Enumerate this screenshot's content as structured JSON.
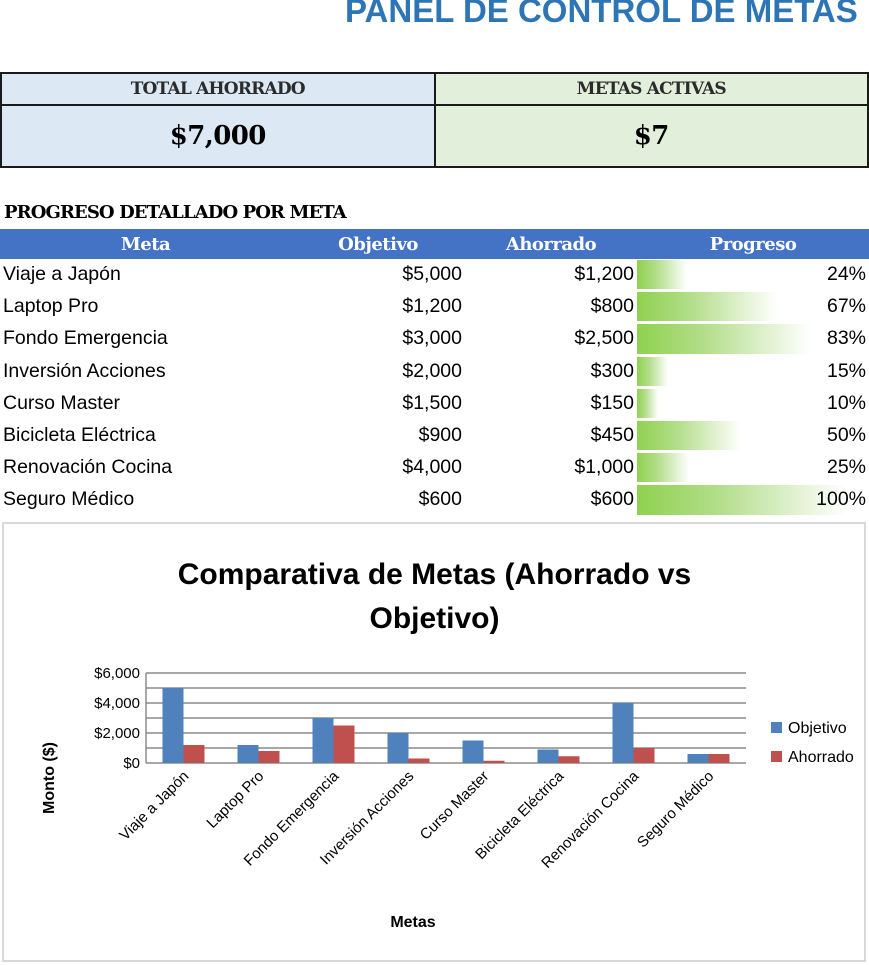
{
  "header": {
    "title": "PANEL DE CONTROL DE METAS"
  },
  "kpis": {
    "total_saved": {
      "label": "TOTAL AHORRADO",
      "value": "$7,000",
      "color": "#dde8f5"
    },
    "active_goals": {
      "label": "METAS ACTIVAS",
      "value": "$7",
      "color": "#e2efda"
    }
  },
  "progress_section": {
    "title": "PROGRESO DETALLADO POR META",
    "header_color": "#4472c4",
    "bar_color": "#8fd14f",
    "columns": [
      "Meta",
      "Objetivo",
      "Ahorrado",
      "Progreso"
    ],
    "rows": [
      {
        "meta": "Viaje a Japón",
        "objetivo": "$5,000",
        "ahorrado": "$1,200",
        "progreso": "24%",
        "pct": 24
      },
      {
        "meta": "Laptop Pro",
        "objetivo": "$1,200",
        "ahorrado": "$800",
        "progreso": "67%",
        "pct": 67
      },
      {
        "meta": "Fondo Emergencia",
        "objetivo": "$3,000",
        "ahorrado": "$2,500",
        "progreso": "83%",
        "pct": 83
      },
      {
        "meta": "Inversión Acciones",
        "objetivo": "$2,000",
        "ahorrado": "$300",
        "progreso": "15%",
        "pct": 15
      },
      {
        "meta": "Curso Master",
        "objetivo": "$1,500",
        "ahorrado": "$150",
        "progreso": "10%",
        "pct": 10
      },
      {
        "meta": "Bicicleta Eléctrica",
        "objetivo": "$900",
        "ahorrado": "$450",
        "progreso": "50%",
        "pct": 50
      },
      {
        "meta": "Renovación Cocina",
        "objetivo": "$4,000",
        "ahorrado": "$1,000",
        "progreso": "25%",
        "pct": 25
      },
      {
        "meta": "Seguro Médico",
        "objetivo": "$600",
        "ahorrado": "$600",
        "progreso": "100%",
        "pct": 100
      }
    ]
  },
  "chart_data": {
    "type": "bar",
    "title": "Comparativa de Metas (Ahorrado vs Objetivo)",
    "title_lines": [
      "Comparativa de Metas (Ahorrado vs",
      "Objetivo)"
    ],
    "xlabel": "Metas",
    "ylabel": "Monto ($)",
    "categories": [
      "Viaje a Japón",
      "Laptop Pro",
      "Fondo Emergencia",
      "Inversión Acciones",
      "Curso Master",
      "Bicicleta Eléctrica",
      "Renovación Cocina",
      "Seguro Médico"
    ],
    "series": [
      {
        "name": "Objetivo",
        "color": "#4f81bd",
        "values": [
          5000,
          1200,
          3000,
          2000,
          1500,
          900,
          4000,
          600
        ]
      },
      {
        "name": "Ahorrado",
        "color": "#c0504d",
        "values": [
          1200,
          800,
          2500,
          300,
          150,
          450,
          1000,
          600
        ]
      }
    ],
    "ylim": [
      0,
      6000
    ],
    "yticks": [
      0,
      2000,
      4000,
      6000
    ],
    "ytick_labels": [
      "$0",
      "$2,000",
      "$4,000",
      "$6,000"
    ],
    "gridlines_every": 1000,
    "grid": true,
    "legend_position": "right"
  }
}
